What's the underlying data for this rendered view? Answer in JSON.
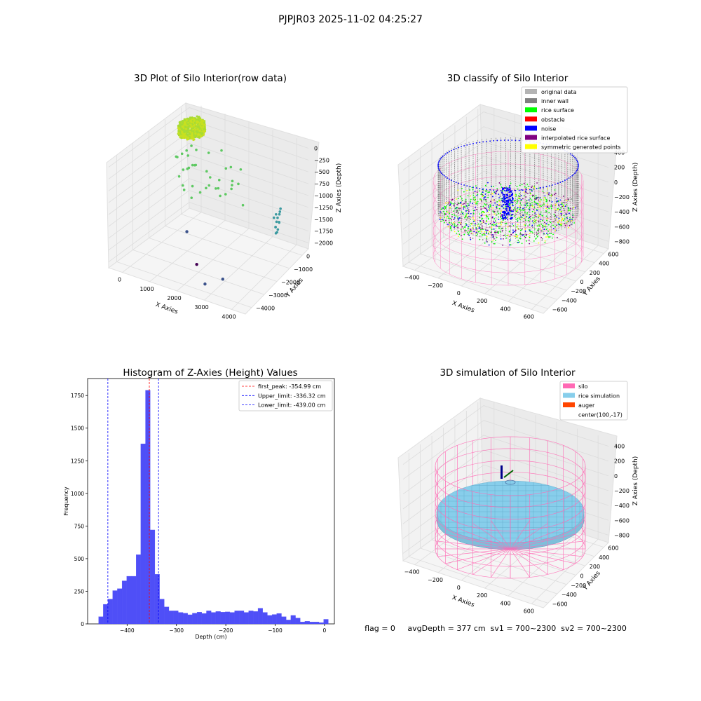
{
  "figure": {
    "suptitle": "PJPJR03 2025-11-02 04:25:27",
    "footer": "flag = 0     avgDepth = 377 cm  sv1 = 700~2300  sv2 = 700~2300"
  },
  "chart_data": [
    {
      "type": "scatter3d",
      "title": "3D Plot of Silo Interior(row data)",
      "xlabel": "X Axies",
      "ylabel": "Y Axies",
      "zlabel": "Z Axies (Depth)",
      "xticks": [
        "0",
        "1000",
        "2000",
        "3000",
        "4000"
      ],
      "yticks": [
        "0",
        "−1000",
        "−2000",
        "−3000",
        "−4000"
      ],
      "zticks": [
        "0",
        "−250",
        "−500",
        "−750",
        "−1000",
        "−1250",
        "−1500",
        "−1750",
        "−2000"
      ],
      "xlim": [
        -500,
        4500
      ],
      "ylim": [
        -4000,
        700
      ],
      "zlim": [
        -2000,
        0
      ],
      "colormap": "viridis",
      "clusters": [
        {
          "x": 300,
          "y": -300,
          "z": -50,
          "color": "#c8e020"
        },
        {
          "x": 1500,
          "y": -900,
          "z": -650,
          "color": "#5ec962"
        },
        {
          "x": 3900,
          "y": -500,
          "z": -1300,
          "color": "#3b9aa0"
        },
        {
          "x": 2700,
          "y": -3400,
          "z": -1900,
          "color": "#3b528b"
        },
        {
          "x": 1700,
          "y": -2200,
          "z": -2000,
          "color": "#440154"
        }
      ]
    },
    {
      "type": "scatter3d",
      "title": "3D classify of Silo Interior",
      "xlabel": "X Axies",
      "ylabel": "Y Axies",
      "zlabel": "Z Axies (Depth)",
      "xticks": [
        "−400",
        "−200",
        "0",
        "200",
        "400",
        "600"
      ],
      "yticks": [
        "600",
        "400",
        "200",
        "0",
        "−200",
        "−400",
        "−600"
      ],
      "zticks": [
        "400",
        "200",
        "0",
        "−200",
        "−400",
        "−600",
        "−800"
      ],
      "xlim": [
        -500,
        700
      ],
      "ylim": [
        -650,
        650
      ],
      "zlim": [
        -900,
        450
      ],
      "legend_position": "upper right",
      "legend": [
        {
          "label": "original data",
          "color": "#b4b4b4"
        },
        {
          "label": "inner wall",
          "color": "#808080"
        },
        {
          "label": "rice surface",
          "color": "#00ff00"
        },
        {
          "label": "obstacle",
          "color": "#ff0000"
        },
        {
          "label": "noise",
          "color": "#0000ff"
        },
        {
          "label": "interpolated rice surface",
          "color": "#800080"
        },
        {
          "label": "symmetric generated points",
          "color": "#ffff00"
        }
      ],
      "silo_color": "#ff69b4"
    },
    {
      "type": "bar",
      "title": "Histogram of Z-Axies (Height) Values",
      "xlabel": "Depth (cm)",
      "ylabel": "Frequency",
      "xlim": [
        -480,
        20
      ],
      "ylim": [
        0,
        1880
      ],
      "xticks": [
        -400,
        -300,
        -200,
        -100,
        0
      ],
      "yticks": [
        0,
        250,
        500,
        750,
        1000,
        1250,
        1500,
        1750
      ],
      "bar_color": "#4f4ff7",
      "bin_width": 9.5,
      "bins": [
        {
          "x": -453,
          "v": 55
        },
        {
          "x": -443.5,
          "v": 150
        },
        {
          "x": -434,
          "v": 190
        },
        {
          "x": -424.5,
          "v": 255
        },
        {
          "x": -415,
          "v": 270
        },
        {
          "x": -405.5,
          "v": 330
        },
        {
          "x": -396,
          "v": 365
        },
        {
          "x": -386.5,
          "v": 365
        },
        {
          "x": -377,
          "v": 530
        },
        {
          "x": -367.5,
          "v": 1380
        },
        {
          "x": -358,
          "v": 1790
        },
        {
          "x": -348.5,
          "v": 720
        },
        {
          "x": -339,
          "v": 380
        },
        {
          "x": -329.5,
          "v": 190
        },
        {
          "x": -320,
          "v": 130
        },
        {
          "x": -310.5,
          "v": 100
        },
        {
          "x": -301,
          "v": 100
        },
        {
          "x": -291.5,
          "v": 88
        },
        {
          "x": -282,
          "v": 82
        },
        {
          "x": -272.5,
          "v": 70
        },
        {
          "x": -263,
          "v": 82
        },
        {
          "x": -253.5,
          "v": 90
        },
        {
          "x": -244,
          "v": 80
        },
        {
          "x": -234.5,
          "v": 100
        },
        {
          "x": -225,
          "v": 88
        },
        {
          "x": -215.5,
          "v": 95
        },
        {
          "x": -206,
          "v": 90
        },
        {
          "x": -196.5,
          "v": 92
        },
        {
          "x": -187,
          "v": 88
        },
        {
          "x": -177.5,
          "v": 100
        },
        {
          "x": -168,
          "v": 100
        },
        {
          "x": -158.5,
          "v": 88
        },
        {
          "x": -149,
          "v": 100
        },
        {
          "x": -139.5,
          "v": 95
        },
        {
          "x": -130,
          "v": 120
        },
        {
          "x": -120.5,
          "v": 88
        },
        {
          "x": -111,
          "v": 65
        },
        {
          "x": -101.5,
          "v": 72
        },
        {
          "x": -92,
          "v": 80
        },
        {
          "x": -82.5,
          "v": 55
        },
        {
          "x": -73,
          "v": 30
        },
        {
          "x": -63.5,
          "v": 65
        },
        {
          "x": -54,
          "v": 45
        },
        {
          "x": -44.5,
          "v": 15
        },
        {
          "x": -35,
          "v": 20
        },
        {
          "x": -25.5,
          "v": 15
        },
        {
          "x": -16,
          "v": 15
        },
        {
          "x": -6.5,
          "v": 10
        },
        {
          "x": 3,
          "v": 35
        }
      ],
      "lines": [
        {
          "label": "first_peak: -354.99 cm",
          "x": -354.99,
          "color": "#ff0000"
        },
        {
          "label": "Upper_limit: -336.32 cm",
          "x": -336.32,
          "color": "#0000ff"
        },
        {
          "label": "Lower_limit: -439.00 cm",
          "x": -439.0,
          "color": "#0000ff"
        }
      ],
      "legend_position": "upper right"
    },
    {
      "type": "surface3d",
      "title": "3D simulation of Silo Interior",
      "xlabel": "X Axies",
      "ylabel": "Y Axies",
      "zlabel": "Z Axies (Depth)",
      "xticks": [
        "−400",
        "−200",
        "0",
        "200",
        "400",
        "600"
      ],
      "yticks": [
        "600",
        "400",
        "200",
        "0",
        "−200",
        "−400",
        "−600"
      ],
      "zticks": [
        "400",
        "200",
        "0",
        "−200",
        "−400",
        "−600",
        "−800"
      ],
      "legend_position": "upper right",
      "legend": [
        {
          "label": "silo",
          "color": "#ff69b4"
        },
        {
          "label": "rice simulation",
          "color": "#87ceeb"
        },
        {
          "label": "auger",
          "color": "#ff4500"
        },
        {
          "label": "center(100,-17)",
          "color": ""
        }
      ],
      "avg_depth": 377
    }
  ]
}
